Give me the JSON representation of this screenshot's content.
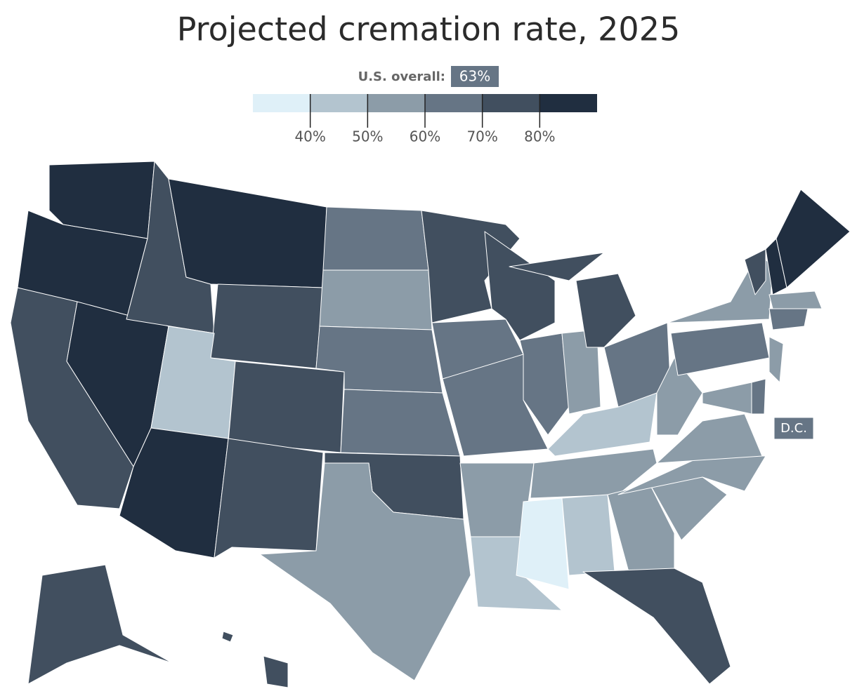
{
  "title": "Projected cremation rate, 2025",
  "overall": {
    "label": "U.S. overall:",
    "value": {
      "value": 63,
      "label": "63%"
    }
  },
  "legend": {
    "range": [
      30,
      90
    ],
    "colors": [
      "#dff0f8",
      "#b3c4cf",
      "#8c9ca8",
      "#667585",
      "#414f5f",
      "#202e40"
    ],
    "ticks": [
      {
        "value": 40,
        "label": "40%"
      },
      {
        "value": 50,
        "label": "50%"
      },
      {
        "value": 60,
        "label": "60%"
      },
      {
        "value": 70,
        "label": "70%"
      },
      {
        "value": 80,
        "label": "80%"
      }
    ]
  },
  "callout": "D.C."
}
